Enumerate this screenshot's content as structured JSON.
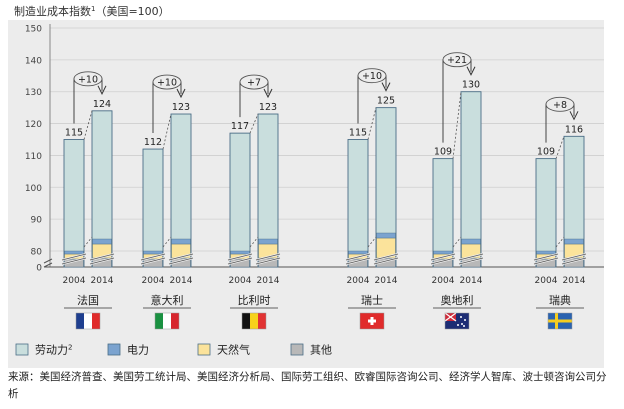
{
  "chart_data": {
    "type": "bar",
    "title": "制造业成本指数",
    "title_superscript": "1",
    "title_note": "（美国=100）",
    "ylim": [
      80,
      150
    ],
    "y_ticks": [
      0,
      80,
      90,
      100,
      110,
      120,
      130,
      140,
      150
    ],
    "axis_break": true,
    "grid": true,
    "colors": {
      "background": "#ececec",
      "labor": "#c9dedd",
      "electricity": "#7ba3cf",
      "gas": "#fbe39b",
      "other": "#b8b8b8",
      "outline": "#4a6d86"
    },
    "countries": [
      {
        "name": "法国",
        "flag": "france",
        "years": [
          "2004",
          "2014"
        ],
        "totals": [
          115,
          124
        ],
        "change": "+10"
      },
      {
        "name": "意大利",
        "flag": "italy",
        "years": [
          "2004",
          "2014"
        ],
        "totals": [
          112,
          123
        ],
        "change": "+10"
      },
      {
        "name": "比利时",
        "flag": "belgium",
        "years": [
          "2004",
          "2014"
        ],
        "totals": [
          117,
          123
        ],
        "change": "+7"
      },
      {
        "name": "瑞士",
        "flag": "switzerland",
        "years": [
          "2004",
          "2014"
        ],
        "totals": [
          115,
          125
        ],
        "change": "+10"
      },
      {
        "name": "奥地利",
        "flag": "austria-icon-as-shown",
        "years": [
          "2004",
          "2014"
        ],
        "totals": [
          109,
          130
        ],
        "change": "+21"
      },
      {
        "name": "瑞典",
        "flag": "sweden",
        "years": [
          "2004",
          "2014"
        ],
        "totals": [
          109,
          116
        ],
        "change": "+8"
      }
    ],
    "legend": [
      {
        "label": "劳动力",
        "sup": "2",
        "key": "labor"
      },
      {
        "label": "电力",
        "sup": "",
        "key": "electricity"
      },
      {
        "label": "天然气",
        "sup": "",
        "key": "gas"
      },
      {
        "label": "其他",
        "sup": "",
        "key": "other"
      }
    ]
  },
  "source_text": "来源：美国经济普查、美国劳工统计局、美国经济分析局、国际劳工组织、欧睿国际咨询公司、经济学人智库、波士顿咨询公司分析"
}
